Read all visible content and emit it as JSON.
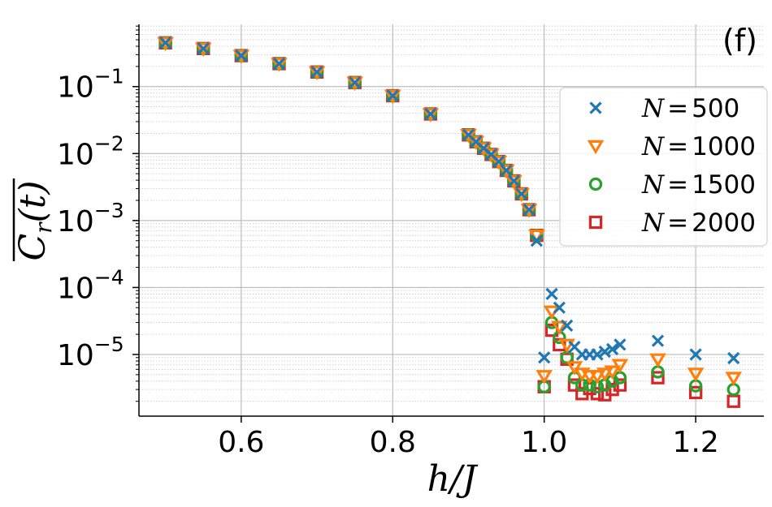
{
  "chart_data": {
    "type": "scatter",
    "panel_label": "(f)",
    "xlabel": "h/J",
    "ylabel": "C_r(t)",
    "ylabel_parts": {
      "main": "C",
      "sub": "r",
      "args": "(t)"
    },
    "xlim": [
      0.465,
      1.29
    ],
    "ylim": [
      1.2e-06,
      0.85
    ],
    "yscale": "log",
    "grid": true,
    "legend_placement": "right",
    "x_ticks": [
      {
        "value": 0.6,
        "label": "0.6"
      },
      {
        "value": 0.8,
        "label": "0.8"
      },
      {
        "value": 1.0,
        "label": "1.0"
      },
      {
        "value": 1.2,
        "label": "1.2"
      }
    ],
    "y_ticks": [
      {
        "value": 0.1,
        "base": "10",
        "exp": "−1"
      },
      {
        "value": 0.01,
        "base": "10",
        "exp": "−2"
      },
      {
        "value": 0.001,
        "base": "10",
        "exp": "−3"
      },
      {
        "value": 0.0001,
        "base": "10",
        "exp": "−4"
      },
      {
        "value": 1e-05,
        "base": "10",
        "exp": "−5"
      }
    ],
    "x": [
      0.5,
      0.55,
      0.6,
      0.65,
      0.7,
      0.75,
      0.8,
      0.85,
      0.9,
      0.91,
      0.92,
      0.93,
      0.94,
      0.95,
      0.96,
      0.97,
      0.98,
      0.99,
      1.0,
      1.01,
      1.02,
      1.03,
      1.04,
      1.05,
      1.06,
      1.07,
      1.08,
      1.09,
      1.1,
      1.15,
      1.2,
      1.25
    ],
    "series": [
      {
        "name": "N = 500",
        "legend_var": "N",
        "legend_val": "500",
        "marker": "x",
        "color": "#1f77b4",
        "values": [
          0.45,
          0.37,
          0.29,
          0.22,
          0.165,
          0.115,
          0.073,
          0.039,
          0.019,
          0.015,
          0.012,
          0.0097,
          0.0076,
          0.0056,
          0.0039,
          0.0025,
          0.00145,
          0.0005,
          9e-06,
          8e-05,
          5e-05,
          2.7e-05,
          1.3e-05,
          1e-05,
          1e-05,
          1e-05,
          1.1e-05,
          1.2e-05,
          1.4e-05,
          1.6e-05,
          1e-05,
          8.8e-06
        ]
      },
      {
        "name": "N = 1000",
        "legend_var": "N",
        "legend_val": "1000",
        "marker": "triangle-down",
        "color": "#ff7f0e",
        "values": [
          0.45,
          0.37,
          0.29,
          0.22,
          0.165,
          0.115,
          0.073,
          0.039,
          0.019,
          0.015,
          0.012,
          0.0097,
          0.0076,
          0.0056,
          0.0039,
          0.0025,
          0.00145,
          0.0006,
          4.8e-06,
          4.4e-05,
          2.6e-05,
          1.4e-05,
          6.5e-06,
          5.2e-06,
          4.8e-06,
          4.8e-06,
          5.2e-06,
          5.6e-06,
          7e-06,
          8.5e-06,
          5.2e-06,
          4.5e-06
        ]
      },
      {
        "name": "N = 1500",
        "legend_var": "N",
        "legend_val": "1500",
        "marker": "circle",
        "color": "#2ca02c",
        "values": [
          0.45,
          0.37,
          0.29,
          0.22,
          0.165,
          0.115,
          0.073,
          0.039,
          0.019,
          0.015,
          0.012,
          0.0097,
          0.0076,
          0.0056,
          0.0039,
          0.0025,
          0.00145,
          0.0006,
          3.3e-06,
          3e-05,
          1.8e-05,
          9e-06,
          4.5e-06,
          3.5e-06,
          3.5e-06,
          3.3e-06,
          3.5e-06,
          4e-06,
          4.5e-06,
          5.5e-06,
          3.4e-06,
          3e-06
        ]
      },
      {
        "name": "N = 2000",
        "legend_var": "N",
        "legend_val": "2000",
        "marker": "square",
        "color": "#d62728",
        "values": [
          0.45,
          0.37,
          0.29,
          0.22,
          0.165,
          0.115,
          0.073,
          0.039,
          0.019,
          0.015,
          0.012,
          0.0097,
          0.0076,
          0.0056,
          0.0039,
          0.0025,
          0.00145,
          0.0006,
          3.3e-06,
          2.3e-05,
          1.4e-05,
          8.5e-06,
          3.5e-06,
          2.6e-06,
          3.1e-06,
          2.6e-06,
          2.5e-06,
          3e-06,
          3.5e-06,
          4.5e-06,
          2.7e-06,
          2e-06
        ]
      }
    ]
  }
}
